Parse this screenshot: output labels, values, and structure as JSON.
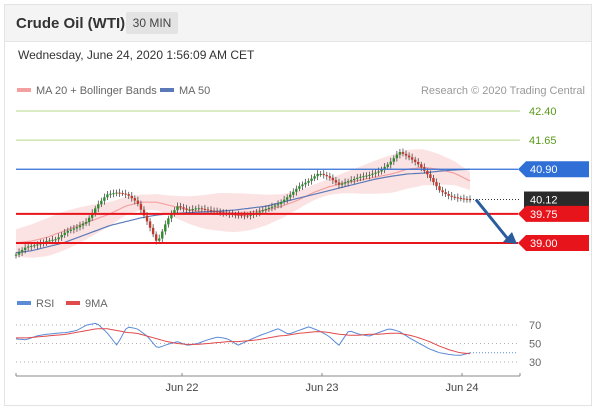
{
  "header": {
    "instrument": "Crude Oil (WTI)",
    "timeframe": "30 MIN"
  },
  "datetime": "Wednesday, June 24, 2020 1:56:09 AM CET",
  "legend": {
    "ma20_label": "MA 20 + Bollinger Bands",
    "ma50_label": "MA 50",
    "copyright": "Research © 2020 Trading Central"
  },
  "osc_legend": {
    "rsi_label": "RSI",
    "ma_label": "9MA"
  },
  "colors": {
    "resistance": "#b5d98a",
    "support": "#e8141c",
    "pivot": "#2f6fd6",
    "ma20": "#f4a0a0",
    "ma50": "#5b79b8",
    "bull": "#2e8b2e",
    "bear": "#c0392b",
    "arrow": "#2a5c9e",
    "rsi": "#5b8bd6",
    "rsi_ma": "#e14a4a"
  },
  "chart_data": [
    {
      "type": "candlestick",
      "title": "",
      "x_tick_labels": [
        "Jun 22",
        "Jun 23",
        "Jun 24"
      ],
      "horizontal_levels": [
        {
          "label": "42.40",
          "value": 42.4,
          "kind": "resistance"
        },
        {
          "label": "41.65",
          "value": 41.65,
          "kind": "resistance"
        },
        {
          "label": "40.90",
          "value": 40.9,
          "kind": "pivot"
        },
        {
          "label": "40.12",
          "value": 40.12,
          "kind": "last-price"
        },
        {
          "label": "39.75",
          "value": 39.75,
          "kind": "support"
        },
        {
          "label": "39.00",
          "value": 39.0,
          "kind": "support"
        }
      ],
      "last_price": 40.12,
      "bias": "down",
      "ylim": [
        38.5,
        42.6
      ],
      "price_path": [
        38.7,
        38.9,
        38.95,
        39.05,
        39.1,
        39.3,
        39.4,
        39.55,
        39.95,
        40.25,
        40.3,
        40.25,
        40.05,
        39.55,
        39.0,
        39.6,
        39.95,
        39.85,
        39.9,
        39.85,
        39.8,
        39.75,
        39.72,
        39.7,
        39.8,
        39.9,
        40.0,
        40.2,
        40.45,
        40.6,
        40.8,
        40.7,
        40.5,
        40.6,
        40.7,
        40.75,
        40.85,
        41.05,
        41.35,
        41.2,
        41.0,
        40.7,
        40.35,
        40.2,
        40.15,
        40.12
      ],
      "ma20_path": [
        39.0,
        39.05,
        39.15,
        39.3,
        39.45,
        39.6,
        39.75,
        39.95,
        40.05,
        40.05,
        39.95,
        39.85,
        39.8,
        39.8,
        39.78,
        39.8,
        39.85,
        39.95,
        40.1,
        40.3,
        40.45,
        40.55,
        40.62,
        40.7,
        40.78,
        40.9,
        40.95,
        40.9,
        40.8,
        40.6
      ],
      "ma50_path": [
        38.75,
        38.8,
        38.9,
        39.0,
        39.15,
        39.3,
        39.45,
        39.55,
        39.65,
        39.72,
        39.76,
        39.78,
        39.8,
        39.82,
        39.85,
        39.9,
        39.95,
        40.05,
        40.15,
        40.25,
        40.35,
        40.45,
        40.55,
        40.65,
        40.72,
        40.78,
        40.8,
        40.85,
        40.88,
        40.9
      ]
    },
    {
      "type": "line",
      "title": "",
      "ylim": [
        20,
        80
      ],
      "y_ticks": [
        70,
        50,
        30
      ],
      "series": [
        {
          "name": "RSI",
          "values": [
            55,
            54,
            58,
            60,
            61,
            62,
            64,
            70,
            72,
            62,
            48,
            68,
            66,
            58,
            45,
            49,
            52,
            48,
            50,
            54,
            57,
            55,
            48,
            53,
            58,
            62,
            66,
            60,
            64,
            68,
            64,
            58,
            48,
            64,
            60,
            58,
            62,
            66,
            63,
            56,
            50,
            44,
            40,
            38,
            37,
            40
          ]
        },
        {
          "name": "9MA",
          "values": [
            56,
            56,
            57,
            58,
            59,
            60,
            62,
            64,
            66,
            66,
            64,
            62,
            61,
            58,
            55,
            52,
            50,
            49,
            49,
            50,
            51,
            52,
            52,
            53,
            54,
            56,
            58,
            59,
            61,
            62,
            63,
            62,
            60,
            59,
            59,
            60,
            60,
            61,
            61,
            59,
            56,
            52,
            47,
            43,
            40,
            39
          ]
        }
      ]
    }
  ]
}
